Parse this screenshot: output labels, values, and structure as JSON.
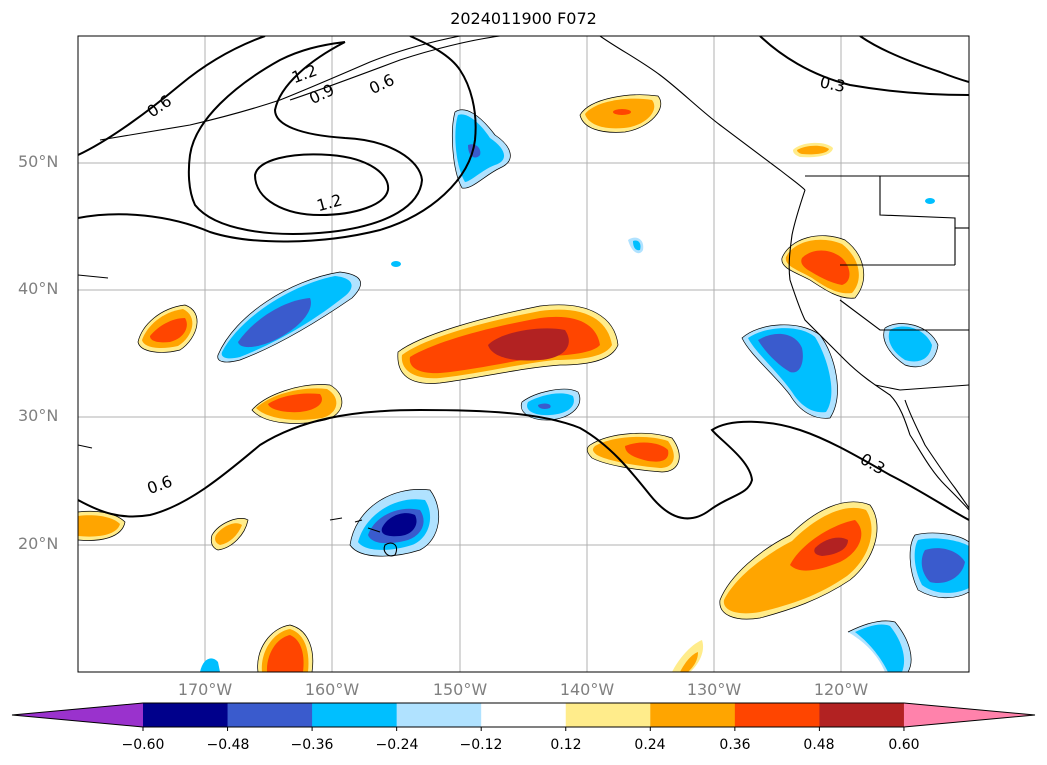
{
  "title": "2024011900 F072",
  "lat_labels": [
    "50°N",
    "40°N",
    "30°N",
    "20°N"
  ],
  "lon_labels": [
    "170°W",
    "160°W",
    "150°W",
    "140°W",
    "130°W",
    "120°W"
  ],
  "contour_labels": [
    "1.2",
    "1.2",
    "0.9",
    "0.6",
    "0.6",
    "0.6",
    "0.3",
    "0.3"
  ],
  "colorbar": {
    "ticks": [
      "−0.60",
      "−0.48",
      "−0.36",
      "−0.24",
      "−0.12",
      "0.12",
      "0.24",
      "0.36",
      "0.48",
      "0.60"
    ],
    "colors": [
      "#9a32cd",
      "#00008b",
      "#3a5bcd",
      "#00bfff",
      "#b0e2ff",
      "#ffffff",
      "#ffec8b",
      "#ffa500",
      "#ff4500",
      "#b22222",
      "#ff82ab"
    ]
  }
}
